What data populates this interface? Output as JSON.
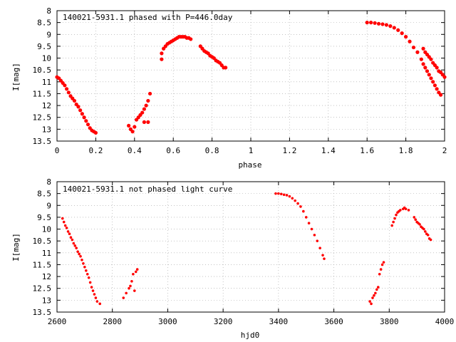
{
  "chart_data": [
    {
      "type": "scatter",
      "title": "140021-5931.1 phased with P=446.0day",
      "xlabel": "phase",
      "ylabel": "I[mag]",
      "xlim": [
        0,
        2
      ],
      "ylim": [
        8,
        13.5
      ],
      "y_inverted": true,
      "grid": true,
      "marker_color": "#ff0000",
      "x_ticks": [
        "0",
        "0.2",
        "0.4",
        "0.6",
        "0.8",
        "1",
        "1.2",
        "1.4",
        "1.6",
        "1.8",
        "2"
      ],
      "y_ticks": [
        "8",
        "8.5",
        "9",
        "9.5",
        "10",
        "10.5",
        "11",
        "11.5",
        "12",
        "12.5",
        "13",
        "13.5"
      ],
      "points": [
        [
          0.0,
          10.8
        ],
        [
          0.01,
          10.85
        ],
        [
          0.02,
          10.95
        ],
        [
          0.03,
          11.05
        ],
        [
          0.04,
          11.15
        ],
        [
          0.05,
          11.3
        ],
        [
          0.06,
          11.45
        ],
        [
          0.07,
          11.6
        ],
        [
          0.08,
          11.7
        ],
        [
          0.09,
          11.8
        ],
        [
          0.1,
          11.95
        ],
        [
          0.11,
          12.05
        ],
        [
          0.12,
          12.2
        ],
        [
          0.13,
          12.35
        ],
        [
          0.14,
          12.5
        ],
        [
          0.15,
          12.65
        ],
        [
          0.16,
          12.8
        ],
        [
          0.17,
          12.95
        ],
        [
          0.18,
          13.05
        ],
        [
          0.19,
          13.1
        ],
        [
          0.2,
          13.15
        ],
        [
          0.37,
          12.85
        ],
        [
          0.38,
          13.0
        ],
        [
          0.39,
          13.1
        ],
        [
          0.4,
          12.9
        ],
        [
          0.41,
          12.6
        ],
        [
          0.42,
          12.5
        ],
        [
          0.43,
          12.4
        ],
        [
          0.44,
          12.3
        ],
        [
          0.45,
          12.15
        ],
        [
          0.46,
          12.0
        ],
        [
          0.47,
          11.8
        ],
        [
          0.48,
          11.5
        ],
        [
          0.47,
          12.7
        ],
        [
          0.45,
          12.7
        ],
        [
          0.54,
          10.05
        ],
        [
          0.54,
          9.8
        ],
        [
          0.55,
          9.6
        ],
        [
          0.56,
          9.5
        ],
        [
          0.57,
          9.4
        ],
        [
          0.58,
          9.35
        ],
        [
          0.59,
          9.3
        ],
        [
          0.6,
          9.25
        ],
        [
          0.61,
          9.2
        ],
        [
          0.62,
          9.15
        ],
        [
          0.63,
          9.1
        ],
        [
          0.64,
          9.1
        ],
        [
          0.65,
          9.1
        ],
        [
          0.66,
          9.1
        ],
        [
          0.67,
          9.15
        ],
        [
          0.68,
          9.15
        ],
        [
          0.69,
          9.2
        ],
        [
          0.74,
          9.5
        ],
        [
          0.75,
          9.6
        ],
        [
          0.76,
          9.7
        ],
        [
          0.77,
          9.75
        ],
        [
          0.78,
          9.8
        ],
        [
          0.79,
          9.9
        ],
        [
          0.8,
          9.95
        ],
        [
          0.81,
          10.0
        ],
        [
          0.82,
          10.1
        ],
        [
          0.83,
          10.15
        ],
        [
          0.84,
          10.2
        ],
        [
          0.85,
          10.3
        ],
        [
          0.86,
          10.4
        ],
        [
          0.87,
          10.4
        ],
        [
          1.6,
          8.5
        ],
        [
          1.62,
          8.5
        ],
        [
          1.64,
          8.52
        ],
        [
          1.66,
          8.55
        ],
        [
          1.68,
          8.57
        ],
        [
          1.7,
          8.6
        ],
        [
          1.72,
          8.65
        ],
        [
          1.74,
          8.72
        ],
        [
          1.76,
          8.82
        ],
        [
          1.78,
          8.95
        ],
        [
          1.8,
          9.1
        ],
        [
          1.82,
          9.3
        ],
        [
          1.84,
          9.55
        ],
        [
          1.86,
          9.75
        ],
        [
          1.88,
          10.05
        ],
        [
          1.89,
          10.25
        ],
        [
          1.9,
          10.4
        ],
        [
          1.91,
          10.55
        ],
        [
          1.92,
          10.7
        ],
        [
          1.93,
          10.85
        ],
        [
          1.94,
          11.0
        ],
        [
          1.95,
          11.15
        ],
        [
          1.96,
          11.3
        ],
        [
          1.97,
          11.45
        ],
        [
          1.98,
          11.55
        ],
        [
          1.89,
          9.6
        ],
        [
          1.9,
          9.75
        ],
        [
          1.91,
          9.85
        ],
        [
          1.92,
          9.95
        ],
        [
          1.93,
          10.05
        ],
        [
          1.94,
          10.2
        ],
        [
          1.95,
          10.3
        ],
        [
          1.96,
          10.4
        ],
        [
          1.97,
          10.55
        ],
        [
          1.98,
          10.6
        ],
        [
          1.99,
          10.7
        ],
        [
          2.0,
          10.8
        ]
      ]
    },
    {
      "type": "scatter",
      "title": "140021-5931.1 not phased light curve",
      "xlabel": "hjd0",
      "ylabel": "I[mag]",
      "xlim": [
        2600,
        4000
      ],
      "ylim": [
        8,
        13.5
      ],
      "y_inverted": true,
      "grid": true,
      "marker_color": "#ff0000",
      "x_ticks": [
        "2600",
        "2800",
        "3000",
        "3200",
        "3400",
        "3600",
        "3800",
        "4000"
      ],
      "y_ticks": [
        "8",
        "8.5",
        "9",
        "9.5",
        "10",
        "10.5",
        "11",
        "11.5",
        "12",
        "12.5",
        "13",
        "13.5"
      ],
      "points": [
        [
          2620,
          9.55
        ],
        [
          2625,
          9.7
        ],
        [
          2630,
          9.85
        ],
        [
          2635,
          9.95
        ],
        [
          2640,
          10.1
        ],
        [
          2645,
          10.2
        ],
        [
          2650,
          10.35
        ],
        [
          2655,
          10.45
        ],
        [
          2660,
          10.6
        ],
        [
          2665,
          10.7
        ],
        [
          2670,
          10.8
        ],
        [
          2675,
          10.95
        ],
        [
          2680,
          11.05
        ],
        [
          2685,
          11.15
        ],
        [
          2690,
          11.3
        ],
        [
          2695,
          11.45
        ],
        [
          2700,
          11.6
        ],
        [
          2705,
          11.75
        ],
        [
          2710,
          11.9
        ],
        [
          2715,
          12.05
        ],
        [
          2720,
          12.25
        ],
        [
          2725,
          12.45
        ],
        [
          2730,
          12.6
        ],
        [
          2735,
          12.75
        ],
        [
          2740,
          12.9
        ],
        [
          2745,
          13.05
        ],
        [
          2755,
          13.15
        ],
        [
          2840,
          12.9
        ],
        [
          2850,
          12.7
        ],
        [
          2860,
          12.5
        ],
        [
          2865,
          12.4
        ],
        [
          2870,
          12.2
        ],
        [
          2875,
          11.9
        ],
        [
          2880,
          12.6
        ],
        [
          2885,
          11.8
        ],
        [
          2890,
          11.7
        ],
        [
          3390,
          8.5
        ],
        [
          3400,
          8.5
        ],
        [
          3410,
          8.52
        ],
        [
          3420,
          8.55
        ],
        [
          3430,
          8.57
        ],
        [
          3440,
          8.62
        ],
        [
          3450,
          8.7
        ],
        [
          3460,
          8.8
        ],
        [
          3470,
          8.92
        ],
        [
          3480,
          9.05
        ],
        [
          3490,
          9.25
        ],
        [
          3500,
          9.5
        ],
        [
          3510,
          9.75
        ],
        [
          3520,
          10.0
        ],
        [
          3530,
          10.25
        ],
        [
          3540,
          10.5
        ],
        [
          3550,
          10.8
        ],
        [
          3560,
          11.1
        ],
        [
          3565,
          11.25
        ],
        [
          3730,
          13.05
        ],
        [
          3735,
          13.15
        ],
        [
          3740,
          12.9
        ],
        [
          3745,
          12.8
        ],
        [
          3750,
          12.7
        ],
        [
          3755,
          12.55
        ],
        [
          3760,
          12.45
        ],
        [
          3765,
          11.9
        ],
        [
          3770,
          11.7
        ],
        [
          3775,
          11.5
        ],
        [
          3780,
          11.4
        ],
        [
          3810,
          9.85
        ],
        [
          3815,
          9.7
        ],
        [
          3820,
          9.55
        ],
        [
          3825,
          9.4
        ],
        [
          3830,
          9.3
        ],
        [
          3835,
          9.25
        ],
        [
          3840,
          9.2
        ],
        [
          3850,
          9.15
        ],
        [
          3855,
          9.1
        ],
        [
          3860,
          9.15
        ],
        [
          3870,
          9.2
        ],
        [
          3890,
          9.5
        ],
        [
          3895,
          9.6
        ],
        [
          3900,
          9.7
        ],
        [
          3905,
          9.75
        ],
        [
          3910,
          9.8
        ],
        [
          3915,
          9.9
        ],
        [
          3920,
          9.95
        ],
        [
          3925,
          10.0
        ],
        [
          3930,
          10.1
        ],
        [
          3935,
          10.2
        ],
        [
          3940,
          10.25
        ],
        [
          3945,
          10.4
        ],
        [
          3950,
          10.45
        ]
      ]
    }
  ]
}
